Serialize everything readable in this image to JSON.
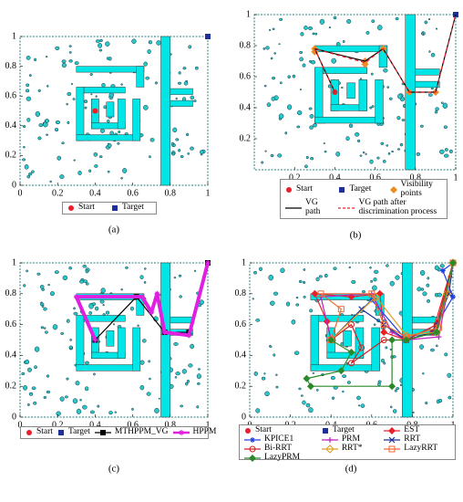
{
  "obstacles": [
    [
      0.3,
      0.76,
      0.66,
      0.8
    ],
    [
      0.62,
      0.66,
      0.66,
      0.8
    ],
    [
      0.3,
      0.3,
      0.34,
      0.66
    ],
    [
      0.3,
      0.3,
      0.64,
      0.34
    ],
    [
      0.6,
      0.3,
      0.64,
      0.58
    ],
    [
      0.34,
      0.62,
      0.56,
      0.66
    ],
    [
      0.38,
      0.38,
      0.42,
      0.58
    ],
    [
      0.38,
      0.38,
      0.56,
      0.42
    ],
    [
      0.52,
      0.38,
      0.56,
      0.58
    ],
    [
      0.46,
      0.46,
      0.5,
      0.56
    ],
    [
      0.75,
      0,
      0.8,
      1
    ],
    [
      0.8,
      0.61,
      0.92,
      0.65
    ],
    [
      0.8,
      0.53,
      0.92,
      0.57
    ]
  ],
  "chart_data": [
    {
      "type": "line",
      "caption": "(a)",
      "xlim": [
        0,
        1
      ],
      "ylim": [
        0,
        1
      ],
      "xticks": [
        0,
        0.2,
        0.4,
        0.6,
        0.8,
        1
      ],
      "yticks": [
        0,
        0.2,
        0.4,
        0.6,
        0.8,
        1
      ],
      "series": [
        {
          "name": "Start",
          "color": "#e8202a",
          "marker": "circle",
          "line": "none",
          "x": [
            0.4
          ],
          "y": [
            0.5
          ]
        },
        {
          "name": "Target",
          "color": "#1f2f9c",
          "marker": "square",
          "line": "none",
          "x": [
            1
          ],
          "y": [
            1
          ]
        }
      ]
    },
    {
      "type": "line",
      "caption": "(b)",
      "xlim": [
        0,
        1
      ],
      "ylim": [
        0,
        1
      ],
      "xticks": [
        0.2,
        0.4,
        0.6,
        0.8,
        1
      ],
      "yticks": [
        0.2,
        0.4,
        0.6,
        0.8,
        1
      ],
      "series": [
        {
          "name": "Start",
          "color": "#e8202a",
          "marker": "circle",
          "line": "none",
          "x": [
            0.4
          ],
          "y": [
            0.5
          ]
        },
        {
          "name": "Target",
          "color": "#1f2f9c",
          "marker": "square",
          "line": "none",
          "x": [
            1
          ],
          "y": [
            1
          ]
        },
        {
          "name": "Visibility points",
          "color": "#f08a24",
          "marker": "diamond",
          "line": "none",
          "x": [
            0.3,
            0.3,
            0.55,
            0.55,
            0.64,
            0.77,
            0.9
          ],
          "y": [
            0.78,
            0.76,
            0.7,
            0.68,
            0.78,
            0.5,
            0.5
          ]
        },
        {
          "name": "VG path",
          "color": "#000000",
          "marker": "none",
          "line": "solid",
          "x": [
            0.4,
            0.3,
            0.55,
            0.64,
            0.77,
            0.9,
            1
          ],
          "y": [
            0.5,
            0.78,
            0.7,
            0.78,
            0.5,
            0.5,
            1
          ]
        },
        {
          "name": "VG path after discrimination process",
          "color": "#e8202a",
          "marker": "none",
          "line": "dashed",
          "x": [
            0.4,
            0.3,
            0.55,
            0.64,
            0.77,
            0.9,
            1
          ],
          "y": [
            0.5,
            0.78,
            0.69,
            0.78,
            0.5,
            0.5,
            1
          ]
        }
      ]
    },
    {
      "type": "line",
      "caption": "(c)",
      "xlim": [
        0,
        1
      ],
      "ylim": [
        0,
        1
      ],
      "xticks": [
        0,
        0.2,
        0.4,
        0.6,
        0.8,
        1
      ],
      "yticks": [
        0,
        0.2,
        0.4,
        0.6,
        0.8,
        1
      ],
      "series": [
        {
          "name": "Start",
          "color": "#e8202a",
          "marker": "circle",
          "line": "none",
          "x": [
            0.4
          ],
          "y": [
            0.5
          ]
        },
        {
          "name": "Target",
          "color": "#1f2f9c",
          "marker": "square",
          "line": "none",
          "x": [
            1
          ],
          "y": [
            1
          ]
        },
        {
          "name": "MTHPPM_VG",
          "color": "#000000",
          "marker": "square",
          "line": "solid",
          "x": [
            0.4,
            0.62,
            0.77,
            0.9,
            1
          ],
          "y": [
            0.5,
            0.78,
            0.55,
            0.55,
            1
          ]
        },
        {
          "name": "HPPM",
          "color": "#e020e0",
          "marker": "star",
          "line": "solid",
          "linewidth": 4,
          "x": [
            0.4,
            0.3,
            0.65,
            0.7,
            0.73,
            0.77,
            0.9,
            1
          ],
          "y": [
            0.5,
            0.78,
            0.78,
            0.68,
            0.8,
            0.55,
            0.53,
            1
          ]
        }
      ]
    },
    {
      "type": "line",
      "caption": "(d)",
      "xlim": [
        0,
        1
      ],
      "ylim": [
        0,
        1
      ],
      "xticks": [
        0,
        0.2,
        0.4,
        0.6,
        0.8,
        1
      ],
      "yticks": [
        0,
        0.2,
        0.4,
        0.6,
        0.8,
        1
      ],
      "series": [
        {
          "name": "Start",
          "color": "#e8202a",
          "marker": "circle",
          "line": "none",
          "x": [
            0.4
          ],
          "y": [
            0.5
          ]
        },
        {
          "name": "Target",
          "color": "#1f2f9c",
          "marker": "square",
          "line": "none",
          "x": [
            1
          ],
          "y": [
            1
          ]
        },
        {
          "name": "EST",
          "color": "#e8202a",
          "marker": "diamond",
          "line": "solid",
          "x": [
            0.4,
            0.38,
            0.32,
            0.5,
            0.64,
            0.66,
            0.77,
            0.9,
            1
          ],
          "y": [
            0.5,
            0.62,
            0.8,
            0.78,
            0.8,
            0.55,
            0.5,
            0.55,
            1
          ]
        },
        {
          "name": "KPICE1",
          "color": "#2040e0",
          "marker": "star",
          "line": "solid",
          "x": [
            0.4,
            0.6,
            0.77,
            0.92,
            1,
            0.95,
            1
          ],
          "y": [
            0.5,
            0.76,
            0.5,
            0.6,
            0.78,
            0.95,
            1
          ]
        },
        {
          "name": "PRM",
          "color": "#c020c0",
          "marker": "plus",
          "line": "solid",
          "x": [
            0.4,
            0.35,
            0.6,
            0.7,
            0.77,
            0.93,
            1
          ],
          "y": [
            0.5,
            0.78,
            0.8,
            0.55,
            0.5,
            0.52,
            1
          ]
        },
        {
          "name": "RRT",
          "color": "#1f2f9c",
          "marker": "x",
          "line": "solid",
          "x": [
            0.4,
            0.55,
            0.66,
            0.77,
            0.9,
            0.98,
            1
          ],
          "y": [
            0.5,
            0.7,
            0.6,
            0.5,
            0.55,
            0.8,
            1
          ]
        },
        {
          "name": "Bi-RRT",
          "color": "#d02020",
          "marker": "open-circle",
          "line": "solid",
          "x": [
            0.4,
            0.5,
            0.55,
            0.5,
            0.66,
            0.77,
            0.92,
            1
          ],
          "y": [
            0.5,
            0.6,
            0.45,
            0.35,
            0.5,
            0.5,
            0.6,
            1
          ]
        },
        {
          "name": "RRT*",
          "color": "#e0a020",
          "marker": "open-diamond",
          "line": "solid",
          "x": [
            0.4,
            0.62,
            0.77,
            0.92,
            0.97,
            1
          ],
          "y": [
            0.5,
            0.78,
            0.53,
            0.55,
            0.8,
            1
          ]
        },
        {
          "name": "LazyRRT",
          "color": "#f06a30",
          "marker": "open-square",
          "line": "solid",
          "x": [
            0.4,
            0.45,
            0.35,
            0.6,
            0.66,
            0.77,
            0.93,
            1
          ],
          "y": [
            0.5,
            0.7,
            0.8,
            0.8,
            0.6,
            0.52,
            0.58,
            1
          ]
        },
        {
          "name": "LazyPRM",
          "color": "#2a8a2a",
          "marker": "diamond",
          "line": "solid",
          "x": [
            0.4,
            0.5,
            0.45,
            0.28,
            0.3,
            0.7,
            0.7,
            0.77,
            0.92,
            1
          ],
          "y": [
            0.5,
            0.42,
            0.3,
            0.25,
            0.2,
            0.2,
            0.5,
            0.5,
            0.55,
            1
          ]
        }
      ]
    }
  ]
}
